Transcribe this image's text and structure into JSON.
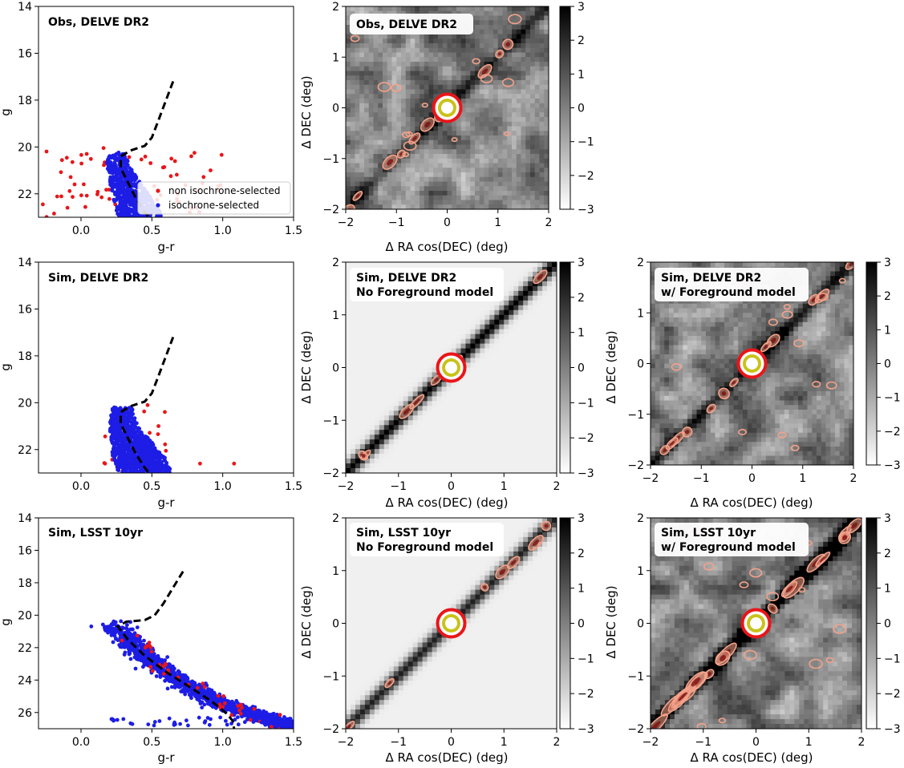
{
  "chart_data": [
    {
      "id": "cmd-obs-delve",
      "type": "scatter",
      "title": "Obs, DELVE DR2",
      "xlabel": "g-r",
      "ylabel": "g",
      "xlim": [
        -0.3,
        1.5
      ],
      "ylim": [
        23,
        14
      ],
      "yticks": [
        14,
        16,
        18,
        20,
        22
      ],
      "xticks": [
        0.0,
        0.5,
        1.0,
        1.5
      ],
      "legend": {
        "position": "lower-right",
        "entries": [
          {
            "label": "non isochrone-selected",
            "color": "#e8161a"
          },
          {
            "label": "isochrone-selected",
            "color": "#1d1de6"
          }
        ]
      },
      "isochrone": [
        [
          0.65,
          17.2
        ],
        [
          0.6,
          18.0
        ],
        [
          0.55,
          18.8
        ],
        [
          0.5,
          19.6
        ],
        [
          0.45,
          19.95
        ],
        [
          0.35,
          20.15
        ],
        [
          0.28,
          20.4
        ],
        [
          0.28,
          20.9
        ],
        [
          0.33,
          21.5
        ],
        [
          0.38,
          22.1
        ],
        [
          0.44,
          22.7
        ],
        [
          0.48,
          23.0
        ]
      ],
      "series": [
        {
          "name": "isochrone-selected",
          "color": "#1d1de6",
          "n": 650,
          "seed": 11,
          "fill": [
            [
              0.22,
              20.2
            ],
            [
              0.3,
              20.2
            ],
            [
              0.36,
              21.0
            ],
            [
              0.44,
              21.7
            ],
            [
              0.52,
              22.4
            ],
            [
              0.58,
              23.0
            ],
            [
              0.26,
              23.0
            ],
            [
              0.2,
              21.5
            ],
            [
              0.18,
              20.6
            ]
          ]
        },
        {
          "name": "non isochrone-selected",
          "color": "#e8161a",
          "n": 75,
          "seed": 17,
          "box": [
            [
              -0.28,
              20.0
            ],
            [
              1.0,
              23.0
            ]
          ]
        }
      ]
    },
    {
      "id": "cmd-sim-delve",
      "type": "scatter",
      "title": "Sim, DELVE DR2",
      "xlabel": "g-r",
      "ylabel": "g",
      "xlim": [
        -0.3,
        1.5
      ],
      "ylim": [
        23,
        14
      ],
      "yticks": [
        14,
        16,
        18,
        20,
        22
      ],
      "xticks": [
        0.0,
        0.5,
        1.0,
        1.5
      ],
      "isochrone": [
        [
          0.65,
          17.2
        ],
        [
          0.6,
          18.0
        ],
        [
          0.55,
          18.8
        ],
        [
          0.5,
          19.6
        ],
        [
          0.45,
          19.95
        ],
        [
          0.35,
          20.15
        ],
        [
          0.28,
          20.4
        ],
        [
          0.28,
          20.9
        ],
        [
          0.33,
          21.5
        ],
        [
          0.38,
          22.1
        ],
        [
          0.44,
          22.7
        ],
        [
          0.48,
          23.0
        ]
      ],
      "series": [
        {
          "name": "isochrone-selected",
          "color": "#1d1de6",
          "n": 950,
          "seed": 23,
          "fill": [
            [
              0.22,
              20.2
            ],
            [
              0.36,
              20.2
            ],
            [
              0.4,
              21.0
            ],
            [
              0.5,
              21.7
            ],
            [
              0.6,
              22.4
            ],
            [
              0.64,
              23.0
            ],
            [
              0.26,
              23.0
            ],
            [
              0.22,
              22.2
            ],
            [
              0.2,
              21.0
            ]
          ]
        },
        {
          "name": "non isochrone-selected",
          "color": "#e8161a",
          "n": 22,
          "seed": 29,
          "box": [
            [
              0.15,
              20.2
            ],
            [
              0.62,
              23.0
            ]
          ],
          "extra": [
            [
              0.84,
              22.6
            ],
            [
              1.08,
              22.6
            ],
            [
              0.47,
              20.1
            ],
            [
              0.17,
              22.6
            ]
          ]
        }
      ]
    },
    {
      "id": "cmd-sim-lsst",
      "type": "scatter",
      "title": "Sim, LSST 10yr",
      "xlabel": "g-r",
      "ylabel": "g",
      "xlim": [
        -0.3,
        1.5
      ],
      "ylim": [
        27,
        14
      ],
      "yticks": [
        14,
        16,
        18,
        20,
        22,
        24,
        26
      ],
      "xticks": [
        0.0,
        0.5,
        1.0,
        1.5
      ],
      "isochrone": [
        [
          0.72,
          17.3
        ],
        [
          0.65,
          18.3
        ],
        [
          0.58,
          19.3
        ],
        [
          0.52,
          20.0
        ],
        [
          0.45,
          20.3
        ],
        [
          0.32,
          20.4
        ],
        [
          0.26,
          20.7
        ],
        [
          0.33,
          21.5
        ],
        [
          0.45,
          22.5
        ],
        [
          0.6,
          23.5
        ],
        [
          0.78,
          24.5
        ],
        [
          0.92,
          25.3
        ],
        [
          1.02,
          26.0
        ],
        [
          1.07,
          26.5
        ],
        [
          1.08,
          27.0
        ]
      ],
      "series": [
        {
          "name": "isochrone-selected",
          "color": "#1d1de6",
          "n": 1500,
          "seed": 31,
          "band": [
            [
              0.22,
              20.5
            ],
            [
              0.33,
              21.5
            ],
            [
              0.45,
              22.5
            ],
            [
              0.6,
              23.5
            ],
            [
              0.78,
              24.5
            ],
            [
              0.95,
              25.3
            ],
            [
              1.15,
              25.9
            ],
            [
              1.4,
              26.6
            ],
            [
              1.45,
              26.9
            ]
          ],
          "width": 0.11
        },
        {
          "name": "non isochrone-selected",
          "color": "#e8161a",
          "n": 40,
          "seed": 37,
          "band": [
            [
              0.3,
              20.9
            ],
            [
              0.45,
              22.3
            ],
            [
              0.6,
              23.4
            ],
            [
              0.8,
              24.5
            ],
            [
              1.0,
              25.4
            ],
            [
              1.2,
              26.1
            ],
            [
              1.45,
              26.9
            ]
          ],
          "width": 0.16
        }
      ],
      "floor_points": {
        "color": "#1d1de6",
        "n": 45,
        "seed": 41,
        "x": [
          0.2,
          1.45
        ],
        "y": [
          26.3,
          26.8
        ]
      }
    },
    {
      "id": "map-obs-delve",
      "type": "heatmap",
      "title": "Obs, DELVE DR2",
      "title2": "",
      "xlabel": "Δ RA cos(DEC) (deg)",
      "ylabel": "Δ DEC (deg)",
      "xlim": [
        -2,
        2
      ],
      "ylim": [
        -2,
        2
      ],
      "ticks": [
        -2,
        -1,
        0,
        1,
        2
      ],
      "colorbar": {
        "label": "",
        "ticks": [
          3,
          2,
          1,
          0,
          -1,
          -2,
          -3
        ],
        "tick_labels": [
          "3",
          "2",
          "1",
          "0",
          "−1",
          "−2",
          "−3"
        ]
      },
      "stream_strength": 0.7,
      "background": "noisy",
      "seed": 101
    },
    {
      "id": "map-sim-delve-nofg",
      "type": "heatmap",
      "title": "Sim, DELVE DR2",
      "title2": "No Foreground model",
      "xlabel": "Δ RA cos(DEC) (deg)",
      "ylabel": "Δ DEC (deg)",
      "xlim": [
        -2,
        2
      ],
      "ylim": [
        -2,
        2
      ],
      "ticks": [
        -2,
        -1,
        0,
        1,
        2
      ],
      "colorbar": {
        "ticks": [
          3,
          2,
          1,
          0,
          -1,
          -2,
          -3
        ],
        "tick_labels": [
          "3",
          "2",
          "1",
          "0",
          "−1",
          "−2",
          "−3"
        ]
      },
      "stream_strength": 1.0,
      "background": "smooth",
      "seed": 202
    },
    {
      "id": "map-sim-delve-fg",
      "type": "heatmap",
      "title": "Sim, DELVE DR2",
      "title2": "w/ Foreground model",
      "xlabel": "Δ RA cos(DEC) (deg)",
      "ylabel": "Δ DEC (deg)",
      "xlim": [
        -2,
        2
      ],
      "ylim": [
        -2,
        2
      ],
      "ticks": [
        -2,
        -1,
        0,
        1,
        2
      ],
      "colorbar": {
        "ticks": [
          3,
          2,
          1,
          0,
          -1,
          -2,
          -3
        ],
        "tick_labels": [
          "3",
          "2",
          "1",
          "0",
          "−1",
          "−2",
          "−3"
        ]
      },
      "stream_strength": 0.8,
      "background": "noisy",
      "seed": 303
    },
    {
      "id": "map-sim-lsst-nofg",
      "type": "heatmap",
      "title": "Sim, LSST 10yr",
      "title2": "No Foreground model",
      "xlabel": "Δ RA cos(DEC) (deg)",
      "ylabel": "Δ DEC (deg)",
      "xlim": [
        -2,
        2
      ],
      "ylim": [
        -2,
        2
      ],
      "ticks": [
        -2,
        -1,
        0,
        1,
        2
      ],
      "colorbar": {
        "ticks": [
          3,
          2,
          1,
          0,
          -1,
          -2,
          -3
        ],
        "tick_labels": [
          "3",
          "2",
          "1",
          "0",
          "−1",
          "−2",
          "−3"
        ]
      },
      "stream_strength": 1.0,
      "background": "smooth",
      "seed": 404
    },
    {
      "id": "map-sim-lsst-fg",
      "type": "heatmap",
      "title": "Sim, LSST 10yr",
      "title2": "w/ Foreground model",
      "xlabel": "Δ RA cos(DEC) (deg)",
      "ylabel": "Δ DEC (deg)",
      "xlim": [
        -2,
        2
      ],
      "ylim": [
        -2,
        2
      ],
      "ticks": [
        -2,
        -1,
        0,
        1,
        2
      ],
      "colorbar": {
        "ticks": [
          3,
          2,
          1,
          0,
          -1,
          -2,
          -3
        ],
        "tick_labels": [
          "3",
          "2",
          "1",
          "0",
          "−1",
          "−2",
          "−3"
        ]
      },
      "stream_strength": 1.6,
      "background": "noisy",
      "seed": 505
    }
  ],
  "colors": {
    "contour": "#f4a28a",
    "contour_edge": "#7a0a0a",
    "marker_ring": "#e8161a",
    "marker_inner": "#c9c21a",
    "axis": "#000000"
  }
}
